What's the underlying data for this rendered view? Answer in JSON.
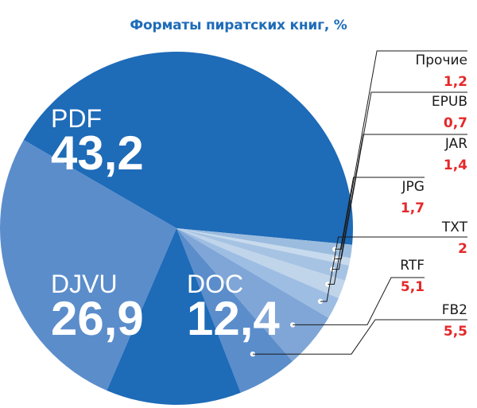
{
  "chart_data": {
    "type": "pie",
    "title": "Форматы пиратских книг, %",
    "series": [
      {
        "name": "PDF",
        "value": 43.2,
        "label": "43,2",
        "color": "#1e6bb8",
        "style": "big"
      },
      {
        "name": "Прочие",
        "value": 1.2,
        "label": "1,2",
        "color": "#9bbcde",
        "style": "callout"
      },
      {
        "name": "EPUB",
        "value": 0.7,
        "label": "0,7",
        "color": "#c8daed",
        "style": "callout"
      },
      {
        "name": "JAR",
        "value": 1.4,
        "label": "1,4",
        "color": "#a6c3e3",
        "style": "callout"
      },
      {
        "name": "JPG",
        "value": 1.7,
        "label": "1,7",
        "color": "#c0d4ea",
        "style": "callout"
      },
      {
        "name": "TXT",
        "value": 2,
        "label": "2",
        "color": "#9dbde3",
        "style": "callout"
      },
      {
        "name": "RTF",
        "value": 5.1,
        "label": "5,1",
        "color": "#7fa6d6",
        "style": "callout"
      },
      {
        "name": "FB2",
        "value": 5.5,
        "label": "5,5",
        "color": "#5b8dcb",
        "style": "callout"
      },
      {
        "name": "DOC",
        "value": 12.4,
        "label": "12,4",
        "color": "#1e6bb8",
        "style": "big"
      },
      {
        "name": "DJVU",
        "value": 26.9,
        "label": "26,9",
        "color": "#5b8dcb",
        "style": "big"
      }
    ]
  }
}
